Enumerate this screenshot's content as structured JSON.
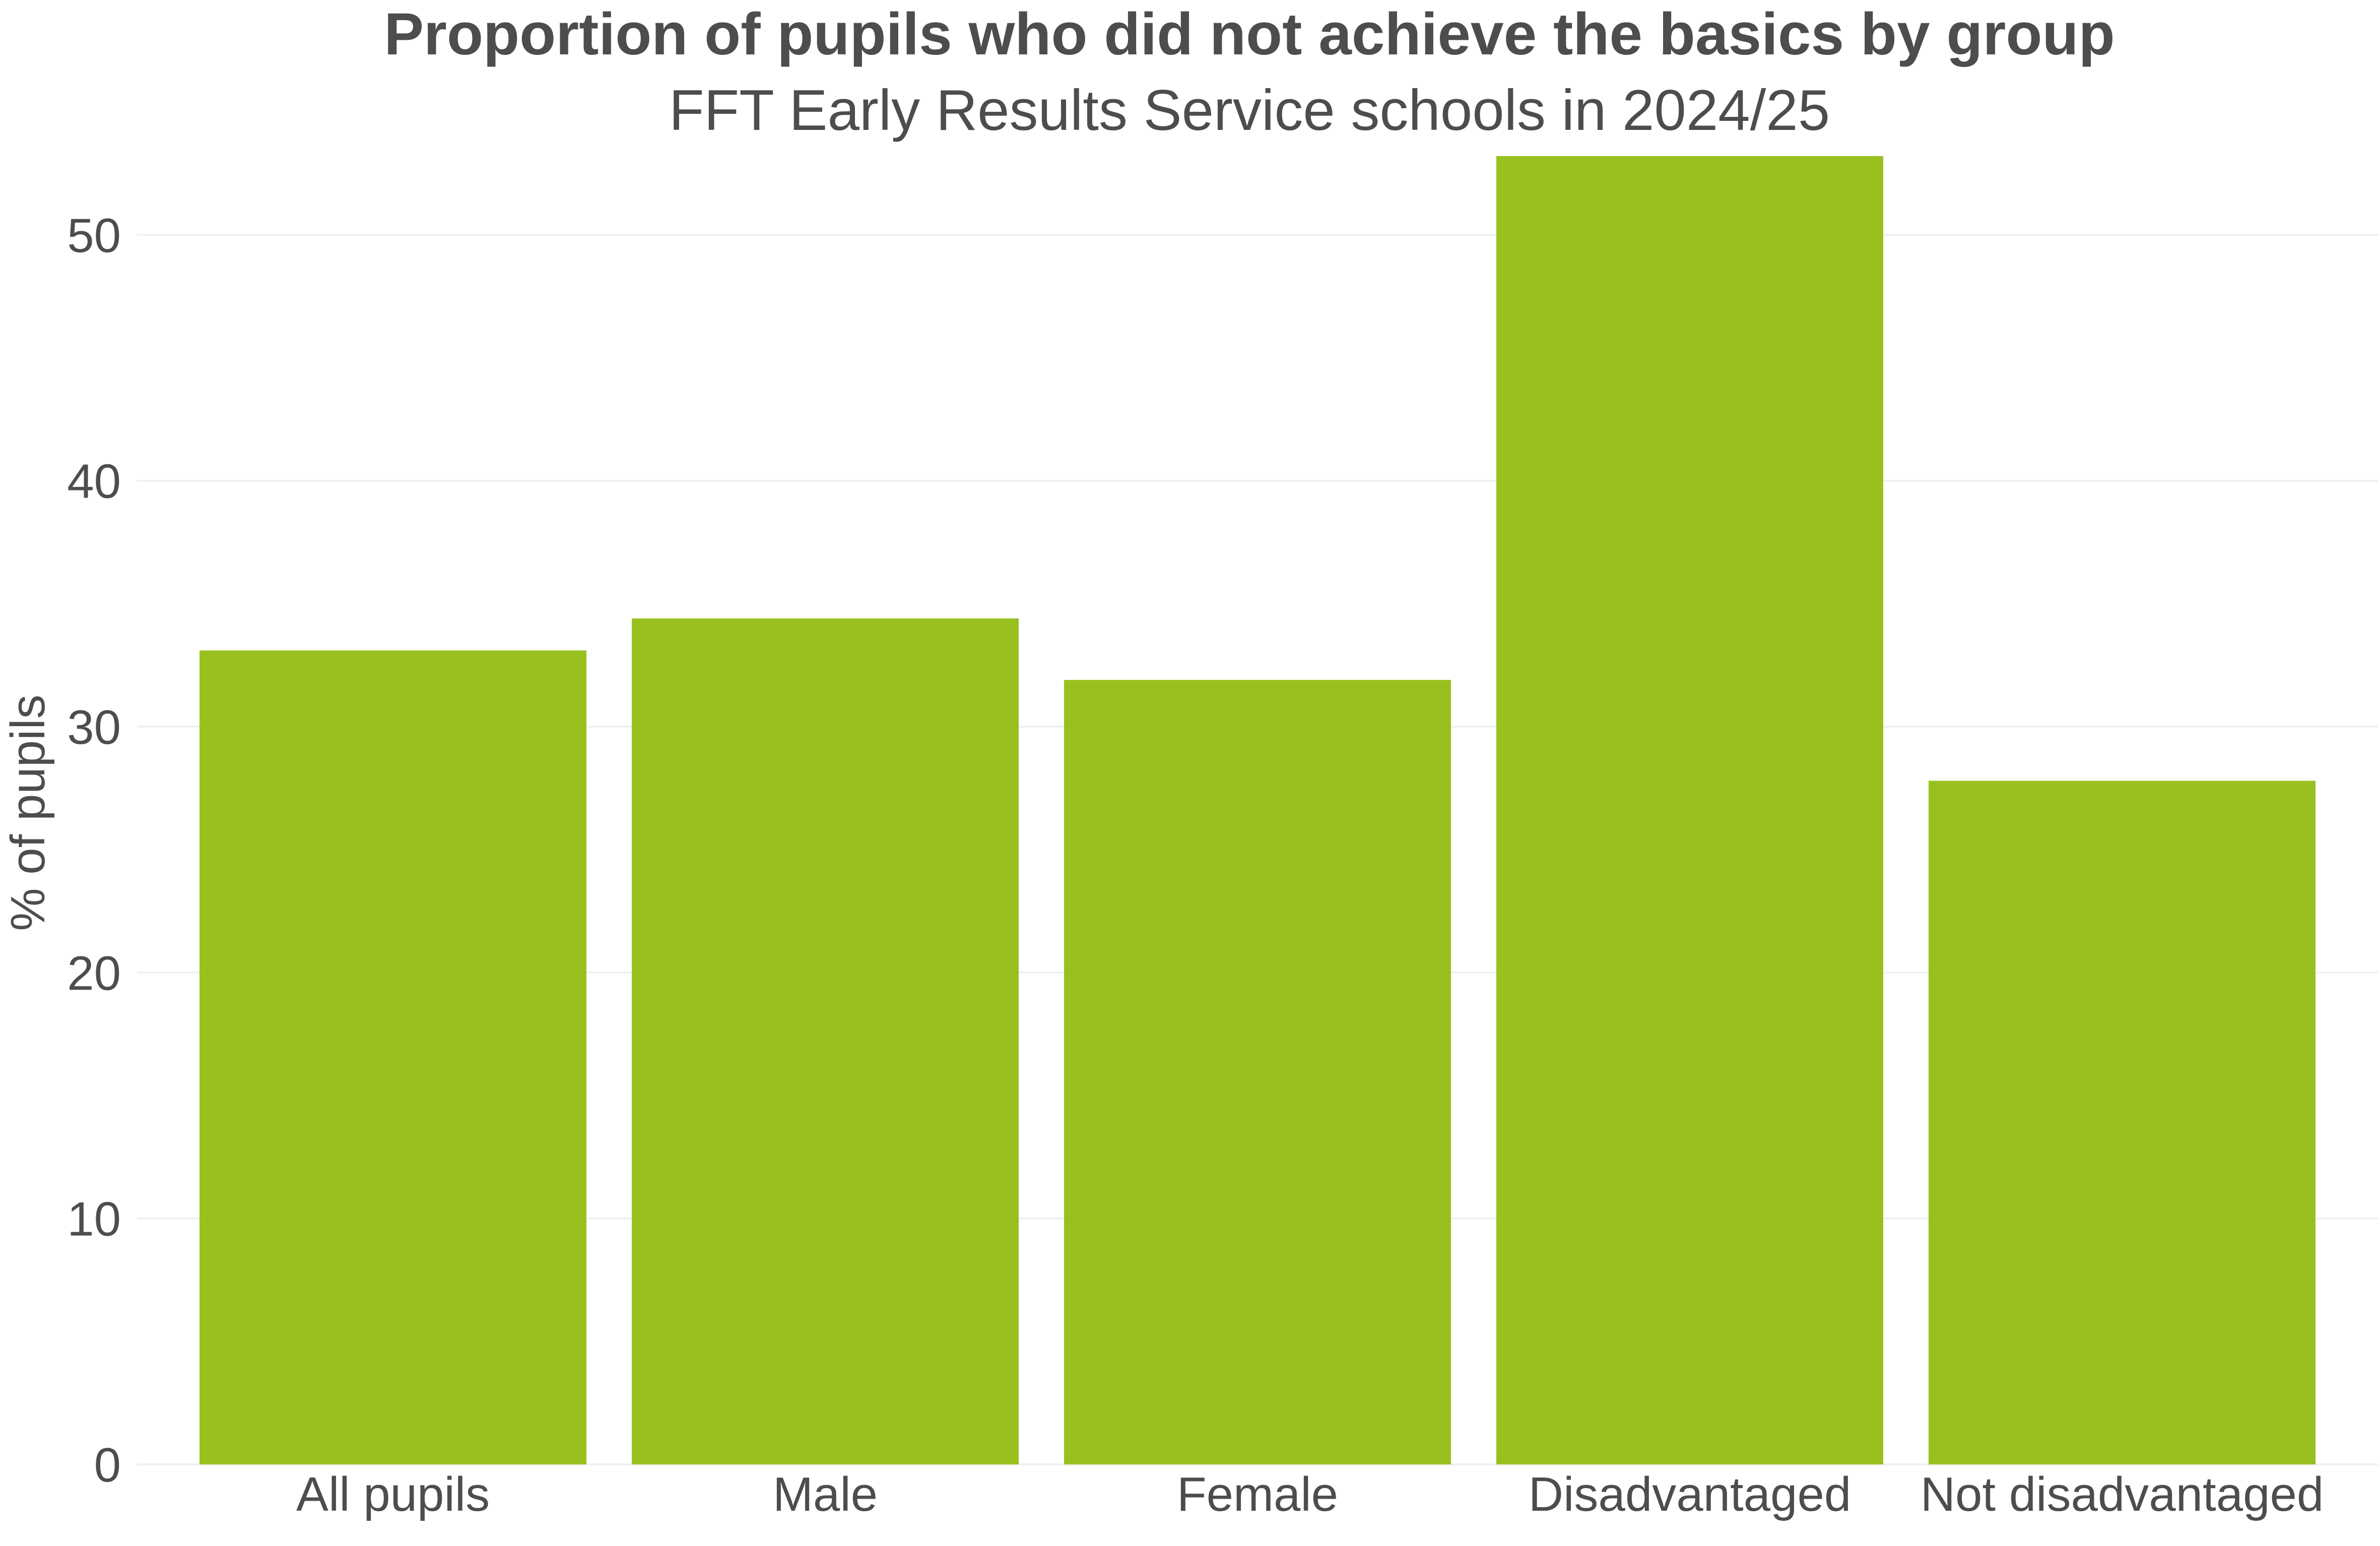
{
  "chart_data": {
    "type": "bar",
    "title": "Proportion of pupils who did not achieve the basics by group",
    "subtitle": "FFT Early Results Service schools in 2024/25",
    "xlabel": "",
    "ylabel": "% of pupils",
    "categories": [
      "All pupils",
      "Male",
      "Female",
      "Disadvantaged",
      "Not disadvantaged"
    ],
    "values": [
      33.1,
      34.4,
      31.9,
      53.2,
      27.8
    ],
    "ylim": [
      0,
      53.2
    ],
    "yticks": [
      0,
      10,
      20,
      30,
      40,
      50
    ],
    "grid": true,
    "legend": "none",
    "bar_color": "#98c11f"
  }
}
